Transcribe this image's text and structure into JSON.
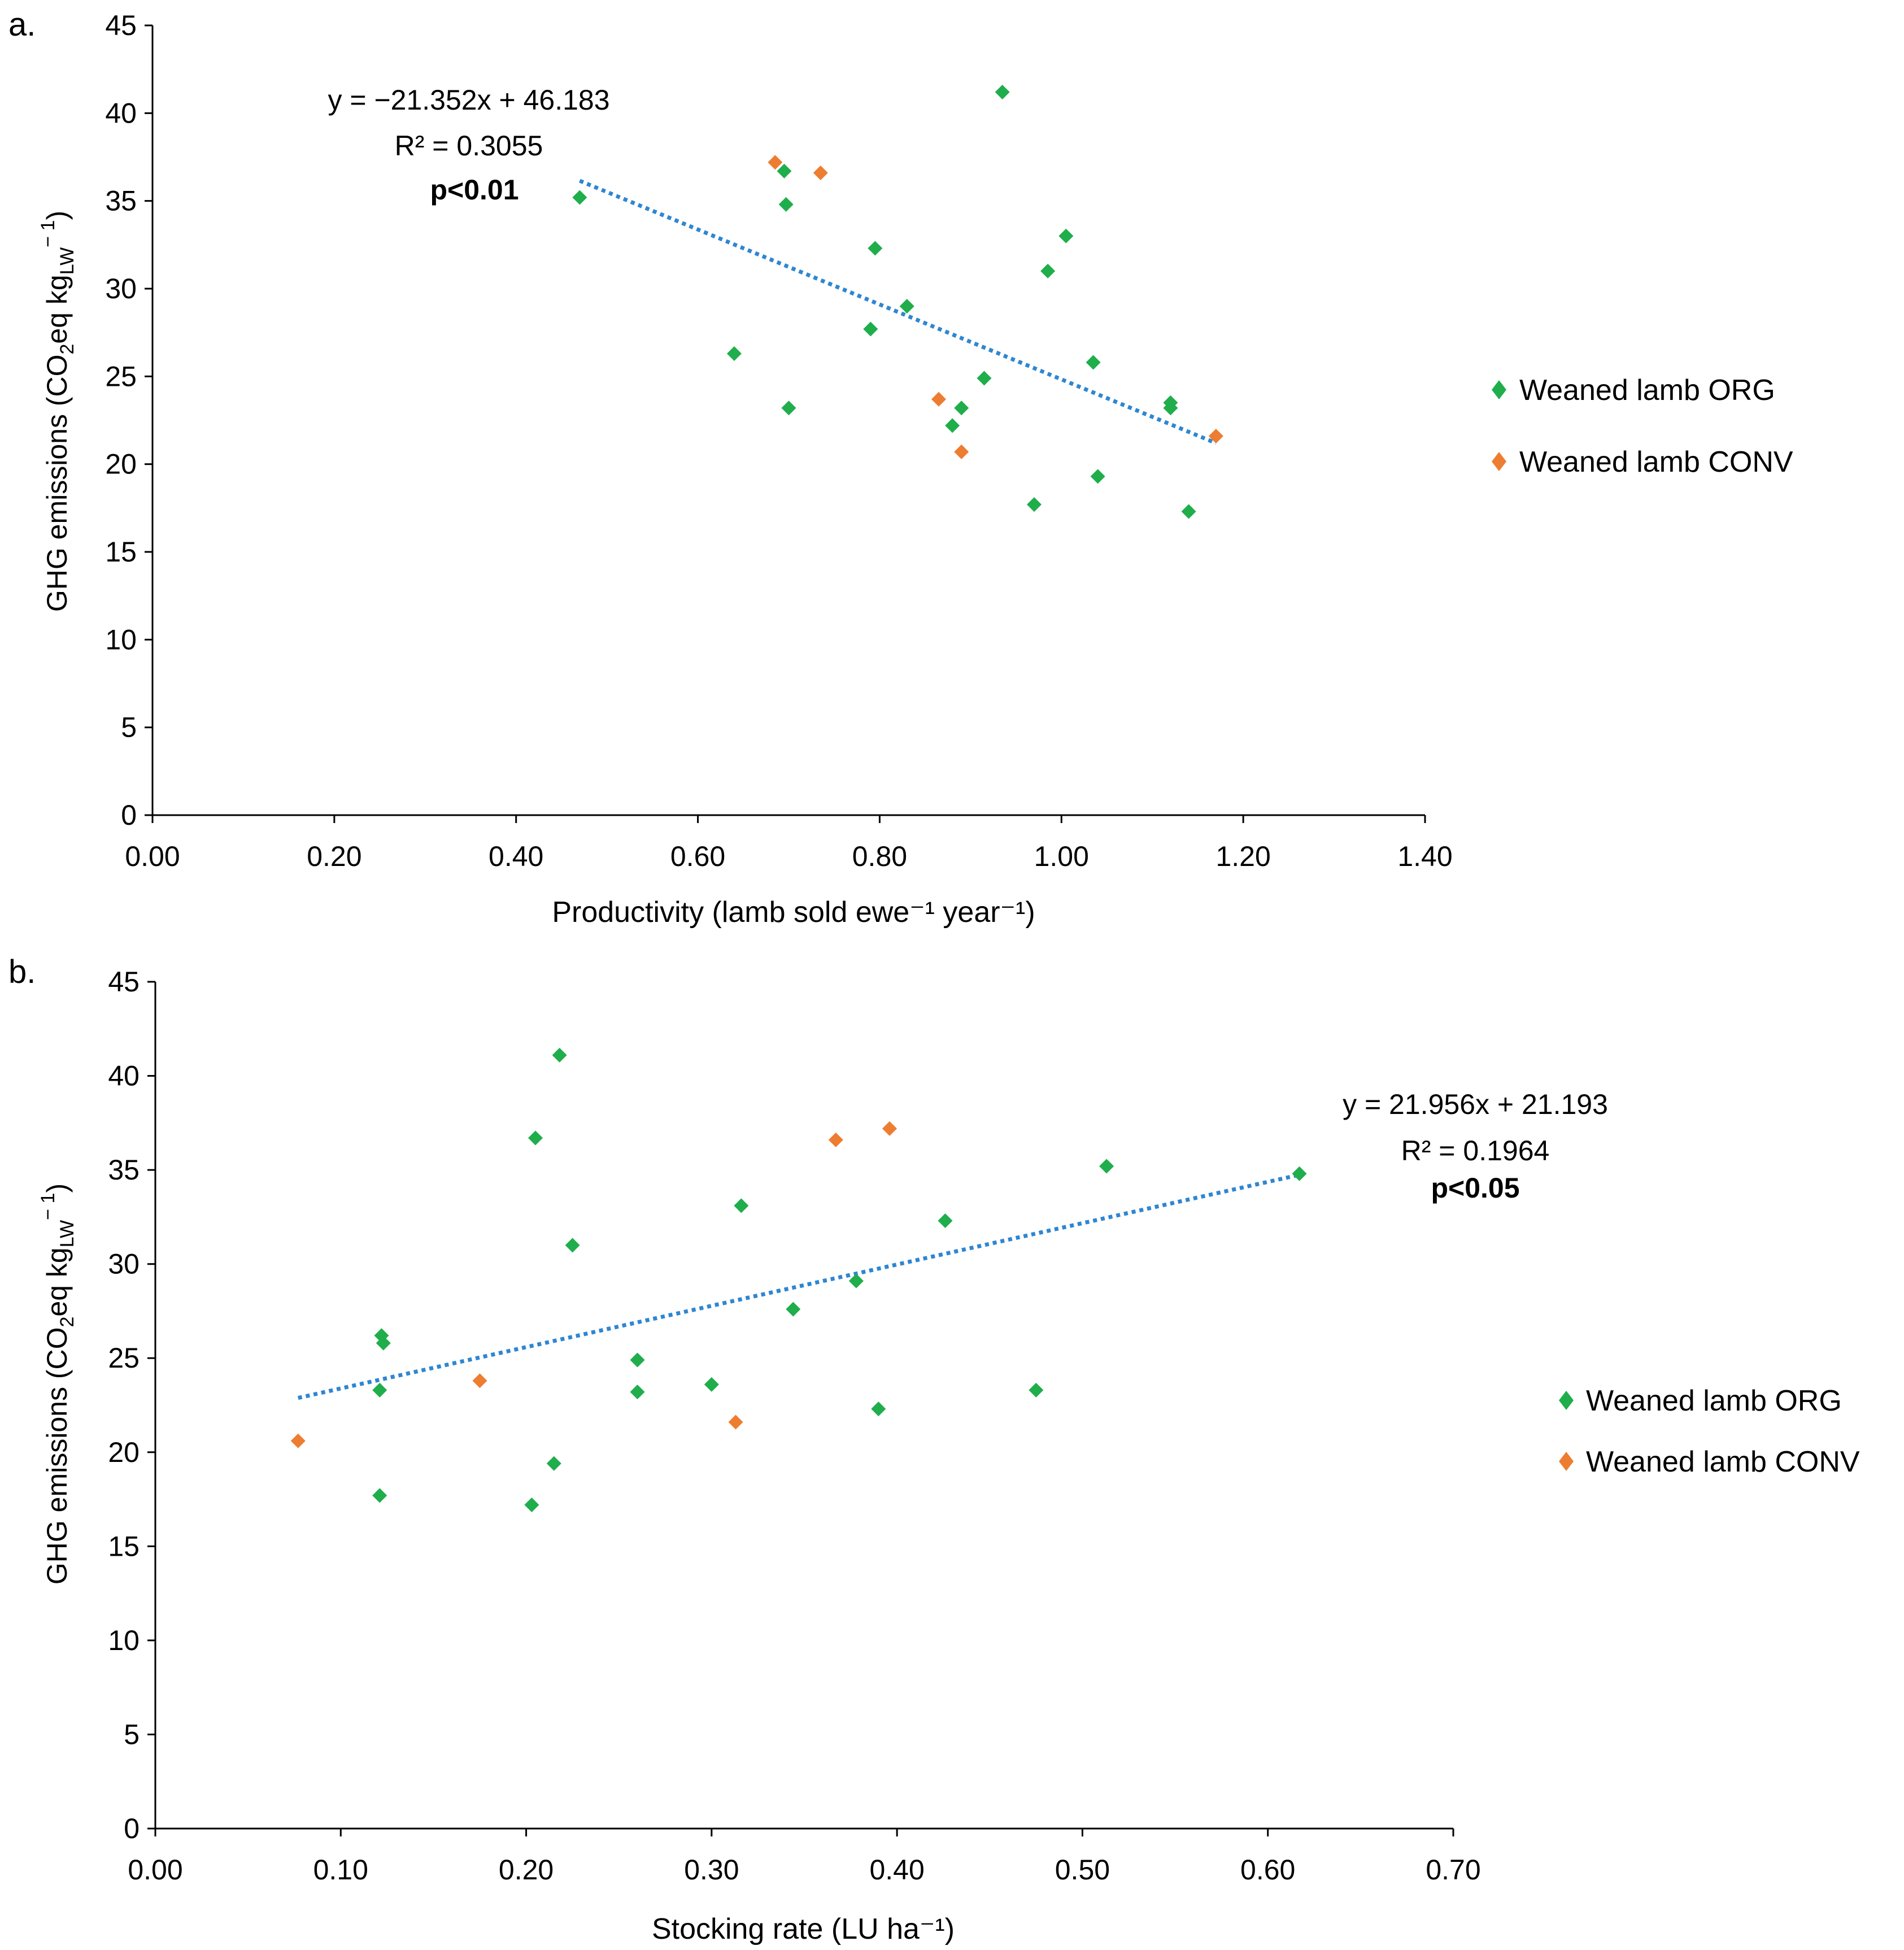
{
  "chart_data": [
    {
      "panel_label": "a.",
      "type": "scatter",
      "xlabel": "Productivity (lamb sold ewe⁻¹ year⁻¹)",
      "ylabel": {
        "pre": "GHG emissions (CO",
        "sub1": "2",
        "mid": "eq kg",
        "sub2": "LW",
        "sup": "− 1",
        "post": ")"
      },
      "xlim": [
        0.0,
        1.4
      ],
      "ylim": [
        0,
        45
      ],
      "xticks": [
        0.0,
        0.2,
        0.4,
        0.6,
        0.8,
        1.0,
        1.2,
        1.4
      ],
      "xtick_labels": [
        "0.00",
        "0.20",
        "0.40",
        "0.60",
        "0.80",
        "1.00",
        "1.20",
        "1.40"
      ],
      "yticks": [
        0,
        5,
        10,
        15,
        20,
        25,
        30,
        35,
        40,
        45
      ],
      "ytick_labels": [
        "0",
        "5",
        "10",
        "15",
        "20",
        "25",
        "30",
        "35",
        "40",
        "45"
      ],
      "grid": false,
      "legend_position": "right",
      "series": [
        {
          "name": "Weaned lamb ORG",
          "color": "#1fae4b",
          "points": [
            [
              0.47,
              35.2
            ],
            [
              0.64,
              26.3
            ],
            [
              0.695,
              36.7
            ],
            [
              0.697,
              34.8
            ],
            [
              0.7,
              23.2
            ],
            [
              0.79,
              27.7
            ],
            [
              0.795,
              32.3
            ],
            [
              0.83,
              29.0
            ],
            [
              0.935,
              41.2
            ],
            [
              0.97,
              17.7
            ],
            [
              0.985,
              31.0
            ],
            [
              1.005,
              33.0
            ],
            [
              1.035,
              25.8
            ],
            [
              1.04,
              19.3
            ],
            [
              1.12,
              23.2
            ],
            [
              1.12,
              23.5
            ],
            [
              1.14,
              17.3
            ],
            [
              0.88,
              22.2
            ],
            [
              0.89,
              23.2
            ],
            [
              0.915,
              24.9
            ]
          ]
        },
        {
          "name": "Weaned lamb CONV",
          "color": "#ed7d31",
          "points": [
            [
              0.685,
              37.2
            ],
            [
              0.735,
              36.6
            ],
            [
              0.865,
              23.7
            ],
            [
              0.89,
              20.7
            ],
            [
              1.17,
              21.6
            ]
          ]
        }
      ],
      "trendline": {
        "color": "#2e86d1",
        "x_range": [
          0.47,
          1.17
        ],
        "slope": -21.352,
        "intercept": 46.183
      },
      "annotations": {
        "equation": "y = −21.352x + 46.183",
        "r2": "R² = 0.3055",
        "p": "p<0.01"
      }
    },
    {
      "panel_label": "b.",
      "type": "scatter",
      "xlabel": "Stocking rate (LU ha⁻¹)",
      "ylabel": {
        "pre": "GHG emissions (CO",
        "sub1": "2",
        "mid": "eq kg",
        "sub2": "LW",
        "sup": "− 1",
        "post": ")"
      },
      "xlim": [
        0.0,
        0.7
      ],
      "ylim": [
        0,
        45
      ],
      "xticks": [
        0.0,
        0.1,
        0.2,
        0.3,
        0.4,
        0.5,
        0.6,
        0.7
      ],
      "xtick_labels": [
        "0.00",
        "0.10",
        "0.20",
        "0.30",
        "0.40",
        "0.50",
        "0.60",
        "0.70"
      ],
      "yticks": [
        0,
        5,
        10,
        15,
        20,
        25,
        30,
        35,
        40,
        45
      ],
      "ytick_labels": [
        "0",
        "5",
        "10",
        "15",
        "20",
        "25",
        "30",
        "35",
        "40",
        "45"
      ],
      "grid": false,
      "legend_position": "right",
      "series": [
        {
          "name": "Weaned lamb ORG",
          "color": "#1fae4b",
          "points": [
            [
              0.122,
              26.2
            ],
            [
              0.123,
              25.8
            ],
            [
              0.121,
              23.3
            ],
            [
              0.121,
              17.7
            ],
            [
              0.203,
              17.2
            ],
            [
              0.215,
              19.4
            ],
            [
              0.218,
              41.1
            ],
            [
              0.205,
              36.7
            ],
            [
              0.225,
              31.0
            ],
            [
              0.26,
              24.9
            ],
            [
              0.26,
              23.2
            ],
            [
              0.3,
              23.6
            ],
            [
              0.316,
              33.1
            ],
            [
              0.344,
              27.6
            ],
            [
              0.378,
              29.1
            ],
            [
              0.39,
              22.3
            ],
            [
              0.426,
              32.3
            ],
            [
              0.475,
              23.3
            ],
            [
              0.513,
              35.2
            ],
            [
              0.617,
              34.8
            ]
          ]
        },
        {
          "name": "Weaned lamb CONV",
          "color": "#ed7d31",
          "points": [
            [
              0.077,
              20.6
            ],
            [
              0.175,
              23.8
            ],
            [
              0.313,
              21.6
            ],
            [
              0.367,
              36.6
            ],
            [
              0.396,
              37.2
            ]
          ]
        }
      ],
      "trendline": {
        "color": "#2e86d1",
        "x_range": [
          0.077,
          0.617
        ],
        "slope": 21.956,
        "intercept": 21.193
      },
      "annotations": {
        "equation": "y = 21.956x + 21.193",
        "r2": "R² = 0.1964",
        "p": "p<0.05"
      }
    }
  ]
}
